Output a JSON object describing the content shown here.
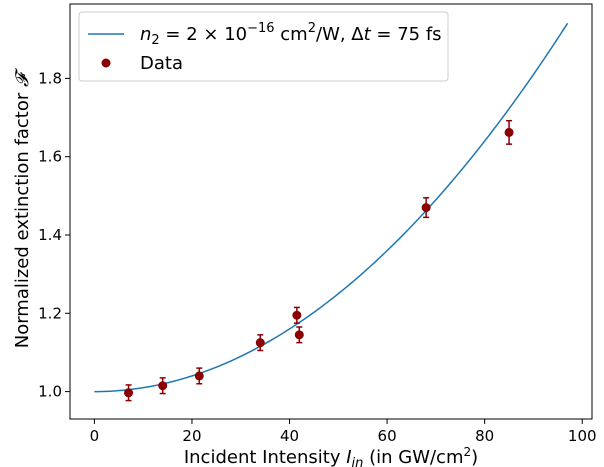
{
  "chart_data": {
    "type": "scatter",
    "xlabel_main": "Incident Intensity ",
    "xlabel_symbol": "I",
    "xlabel_sub": "in",
    "xlabel_unit_open": " (in GW/cm",
    "xlabel_unit_sup": "2",
    "xlabel_unit_close": ")",
    "ylabel_main": "Normalized extinction factor ",
    "ylabel_symbol": "𝓕",
    "xlim": [
      -5,
      102
    ],
    "ylim": [
      0.93,
      1.99
    ],
    "x_ticks": [
      0,
      20,
      40,
      60,
      80,
      100
    ],
    "y_ticks": [
      1.0,
      1.2,
      1.4,
      1.6,
      1.8
    ],
    "x_tick_labels": [
      "0",
      "20",
      "40",
      "60",
      "80",
      "100"
    ],
    "y_tick_labels": [
      "1.0",
      "1.2",
      "1.4",
      "1.6",
      "1.8"
    ],
    "fit_line": {
      "color": "#1f77b4",
      "x_range": [
        0,
        97
      ],
      "intercept": 1.0,
      "coef": 0.0001
    },
    "series": [
      {
        "kind": "data",
        "color": "#8b0000",
        "x": [
          7,
          14,
          21.5,
          34,
          41.5,
          42,
          68,
          85
        ],
        "y": [
          0.997,
          1.015,
          1.04,
          1.125,
          1.195,
          1.145,
          1.47,
          1.662
        ],
        "err": [
          0.02,
          0.02,
          0.02,
          0.02,
          0.02,
          0.02,
          0.025,
          0.03
        ]
      }
    ],
    "legend": {
      "placement": "upper-left",
      "line_entry": {
        "n": "n",
        "n_sub": "2",
        "mid": " = 2 × 10",
        "exp": "−16",
        "units": " cm",
        "units_sup": "2",
        "tail": "/W, Δ",
        "t": "t",
        "t_val": " = 75 fs"
      },
      "data_entry": "Data"
    }
  }
}
